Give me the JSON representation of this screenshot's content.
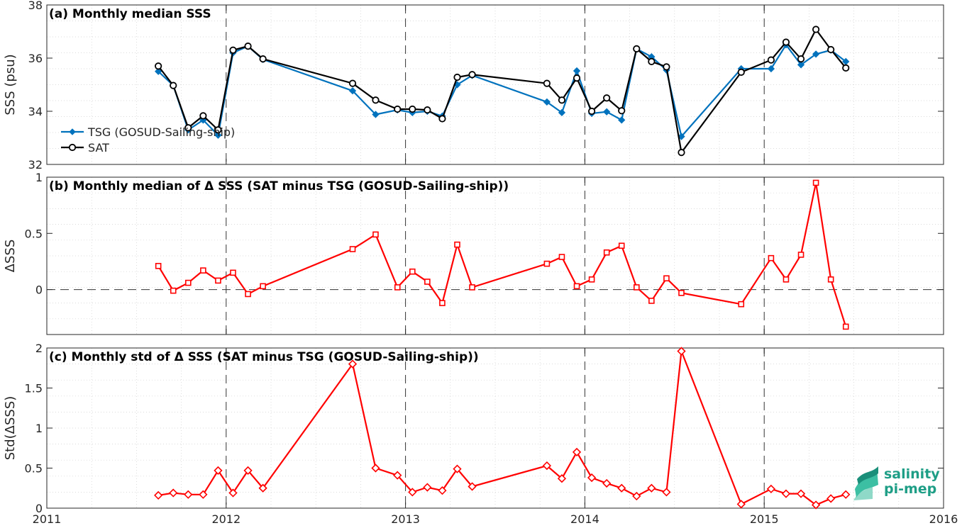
{
  "chart_data": [
    {
      "panel": "a",
      "type": "line",
      "title": "(a) Monthly median SSS",
      "xlabel": "",
      "ylabel": "SSS (psu)",
      "xlim": [
        "2011-01",
        "2016-01"
      ],
      "ylim": [
        32,
        38
      ],
      "yticks": [
        32,
        34,
        36,
        38
      ],
      "legend_placement": "bottom-left",
      "series": [
        {
          "name": "TSG (GOSUD-Sailing-ship)",
          "color": "#0072bd",
          "marker": "diamond",
          "points": [
            [
              "2011-08-15",
              35.5
            ],
            [
              "2011-09-15",
              34.97
            ],
            [
              "2011-10-15",
              33.3
            ],
            [
              "2011-11-15",
              33.67
            ],
            [
              "2011-12-15",
              33.1
            ],
            [
              "2012-01-15",
              36.2
            ],
            [
              "2012-02-15",
              36.45
            ],
            [
              "2012-03-15",
              35.95
            ],
            [
              "2012-09-15",
              34.77
            ],
            [
              "2012-11-01",
              33.88
            ],
            [
              "2012-12-15",
              34.05
            ],
            [
              "2013-01-15",
              33.95
            ],
            [
              "2013-02-15",
              34.0
            ],
            [
              "2013-03-15",
              33.82
            ],
            [
              "2013-04-15",
              35.0
            ],
            [
              "2013-05-15",
              35.35
            ],
            [
              "2013-10-15",
              34.35
            ],
            [
              "2013-11-15",
              33.95
            ],
            [
              "2013-12-15",
              35.52
            ],
            [
              "2014-01-15",
              33.92
            ],
            [
              "2014-02-15",
              33.98
            ],
            [
              "2014-03-15",
              33.67
            ],
            [
              "2014-04-15",
              36.35
            ],
            [
              "2014-05-15",
              36.05
            ],
            [
              "2014-06-15",
              35.55
            ],
            [
              "2014-07-15",
              33.05
            ],
            [
              "2014-11-15",
              35.6
            ],
            [
              "2015-01-15",
              35.6
            ],
            [
              "2015-02-15",
              36.5
            ],
            [
              "2015-03-15",
              35.75
            ],
            [
              "2015-04-15",
              36.15
            ],
            [
              "2015-05-15",
              36.3
            ],
            [
              "2015-06-15",
              35.87
            ]
          ]
        },
        {
          "name": "SAT",
          "color": "#000000",
          "marker": "circle",
          "points": [
            [
              "2011-08-15",
              35.7
            ],
            [
              "2011-09-15",
              34.97
            ],
            [
              "2011-10-15",
              33.38
            ],
            [
              "2011-11-15",
              33.83
            ],
            [
              "2011-12-15",
              33.3
            ],
            [
              "2012-01-15",
              36.3
            ],
            [
              "2012-02-15",
              36.45
            ],
            [
              "2012-03-15",
              35.97
            ],
            [
              "2012-09-15",
              35.05
            ],
            [
              "2012-11-01",
              34.42
            ],
            [
              "2012-12-15",
              34.08
            ],
            [
              "2013-01-15",
              34.08
            ],
            [
              "2013-02-15",
              34.05
            ],
            [
              "2013-03-15",
              33.72
            ],
            [
              "2013-04-15",
              35.28
            ],
            [
              "2013-05-15",
              35.38
            ],
            [
              "2013-10-15",
              35.05
            ],
            [
              "2013-11-15",
              34.42
            ],
            [
              "2013-12-15",
              35.25
            ],
            [
              "2014-01-15",
              34.0
            ],
            [
              "2014-02-15",
              34.5
            ],
            [
              "2014-03-15",
              34.02
            ],
            [
              "2014-04-15",
              36.35
            ],
            [
              "2014-05-15",
              35.87
            ],
            [
              "2014-06-15",
              35.67
            ],
            [
              "2014-07-15",
              32.45
            ],
            [
              "2014-11-15",
              35.47
            ],
            [
              "2015-01-15",
              35.93
            ],
            [
              "2015-02-15",
              36.6
            ],
            [
              "2015-03-15",
              35.97
            ],
            [
              "2015-04-15",
              37.08
            ],
            [
              "2015-05-15",
              36.32
            ],
            [
              "2015-06-15",
              35.63
            ]
          ]
        }
      ]
    },
    {
      "panel": "b",
      "type": "line",
      "title": "(b) Monthly median of Δ SSS (SAT minus TSG (GOSUD-Sailing-ship))",
      "xlabel": "",
      "ylabel": "ΔSSS",
      "xlim": [
        "2011-01",
        "2016-01"
      ],
      "ylim": [
        -0.4,
        1
      ],
      "yticks": [
        0,
        0.5,
        1
      ],
      "zero_line": true,
      "series": [
        {
          "name": "",
          "color": "#ff0000",
          "marker": "square",
          "points": [
            [
              "2011-08-15",
              0.21
            ],
            [
              "2011-09-15",
              -0.01
            ],
            [
              "2011-10-15",
              0.06
            ],
            [
              "2011-11-15",
              0.17
            ],
            [
              "2011-12-15",
              0.08
            ],
            [
              "2012-01-15",
              0.15
            ],
            [
              "2012-02-15",
              -0.04
            ],
            [
              "2012-03-15",
              0.03
            ],
            [
              "2012-09-15",
              0.36
            ],
            [
              "2012-11-01",
              0.49
            ],
            [
              "2012-12-15",
              0.02
            ],
            [
              "2013-01-15",
              0.16
            ],
            [
              "2013-02-15",
              0.07
            ],
            [
              "2013-03-15",
              -0.12
            ],
            [
              "2013-04-15",
              0.4
            ],
            [
              "2013-05-15",
              0.02
            ],
            [
              "2013-10-15",
              0.23
            ],
            [
              "2013-11-15",
              0.29
            ],
            [
              "2013-12-15",
              0.03
            ],
            [
              "2014-01-15",
              0.09
            ],
            [
              "2014-02-15",
              0.33
            ],
            [
              "2014-03-15",
              0.39
            ],
            [
              "2014-04-15",
              0.02
            ],
            [
              "2014-05-15",
              -0.1
            ],
            [
              "2014-06-15",
              0.1
            ],
            [
              "2014-07-15",
              -0.03
            ],
            [
              "2014-11-15",
              -0.13
            ],
            [
              "2015-01-15",
              0.28
            ],
            [
              "2015-02-15",
              0.09
            ],
            [
              "2015-03-15",
              0.31
            ],
            [
              "2015-04-15",
              0.95
            ],
            [
              "2015-05-15",
              0.09
            ],
            [
              "2015-06-15",
              -0.33
            ]
          ]
        }
      ]
    },
    {
      "panel": "c",
      "type": "line",
      "title": "(c) Monthly std of Δ SSS (SAT minus TSG (GOSUD-Sailing-ship))",
      "xlabel": "",
      "ylabel": "Std(ΔSSS)",
      "xlim": [
        "2011-01",
        "2016-01"
      ],
      "ylim": [
        0,
        2
      ],
      "yticks": [
        0,
        0.5,
        1,
        1.5,
        2
      ],
      "xticks": [
        "2011",
        "2012",
        "2013",
        "2014",
        "2015",
        "2016"
      ],
      "series": [
        {
          "name": "",
          "color": "#ff0000",
          "marker": "diamond",
          "points": [
            [
              "2011-08-15",
              0.16
            ],
            [
              "2011-09-15",
              0.19
            ],
            [
              "2011-10-15",
              0.17
            ],
            [
              "2011-11-15",
              0.17
            ],
            [
              "2011-12-15",
              0.47
            ],
            [
              "2012-01-15",
              0.19
            ],
            [
              "2012-02-15",
              0.47
            ],
            [
              "2012-03-15",
              0.25
            ],
            [
              "2012-09-15",
              1.8
            ],
            [
              "2012-11-01",
              0.5
            ],
            [
              "2012-12-15",
              0.41
            ],
            [
              "2013-01-15",
              0.2
            ],
            [
              "2013-02-15",
              0.26
            ],
            [
              "2013-03-15",
              0.22
            ],
            [
              "2013-04-15",
              0.49
            ],
            [
              "2013-05-15",
              0.27
            ],
            [
              "2013-10-15",
              0.53
            ],
            [
              "2013-11-15",
              0.37
            ],
            [
              "2013-12-15",
              0.7
            ],
            [
              "2014-01-15",
              0.38
            ],
            [
              "2014-02-15",
              0.31
            ],
            [
              "2014-03-15",
              0.25
            ],
            [
              "2014-04-15",
              0.15
            ],
            [
              "2014-05-15",
              0.25
            ],
            [
              "2014-06-15",
              0.2
            ],
            [
              "2014-07-15",
              1.96
            ],
            [
              "2014-11-15",
              0.05
            ],
            [
              "2015-01-15",
              0.24
            ],
            [
              "2015-02-15",
              0.18
            ],
            [
              "2015-03-15",
              0.18
            ],
            [
              "2015-04-15",
              0.04
            ],
            [
              "2015-05-15",
              0.12
            ],
            [
              "2015-06-15",
              0.17
            ]
          ]
        }
      ]
    }
  ],
  "logo": {
    "line1": "salinity",
    "line2": "pi-mep"
  }
}
